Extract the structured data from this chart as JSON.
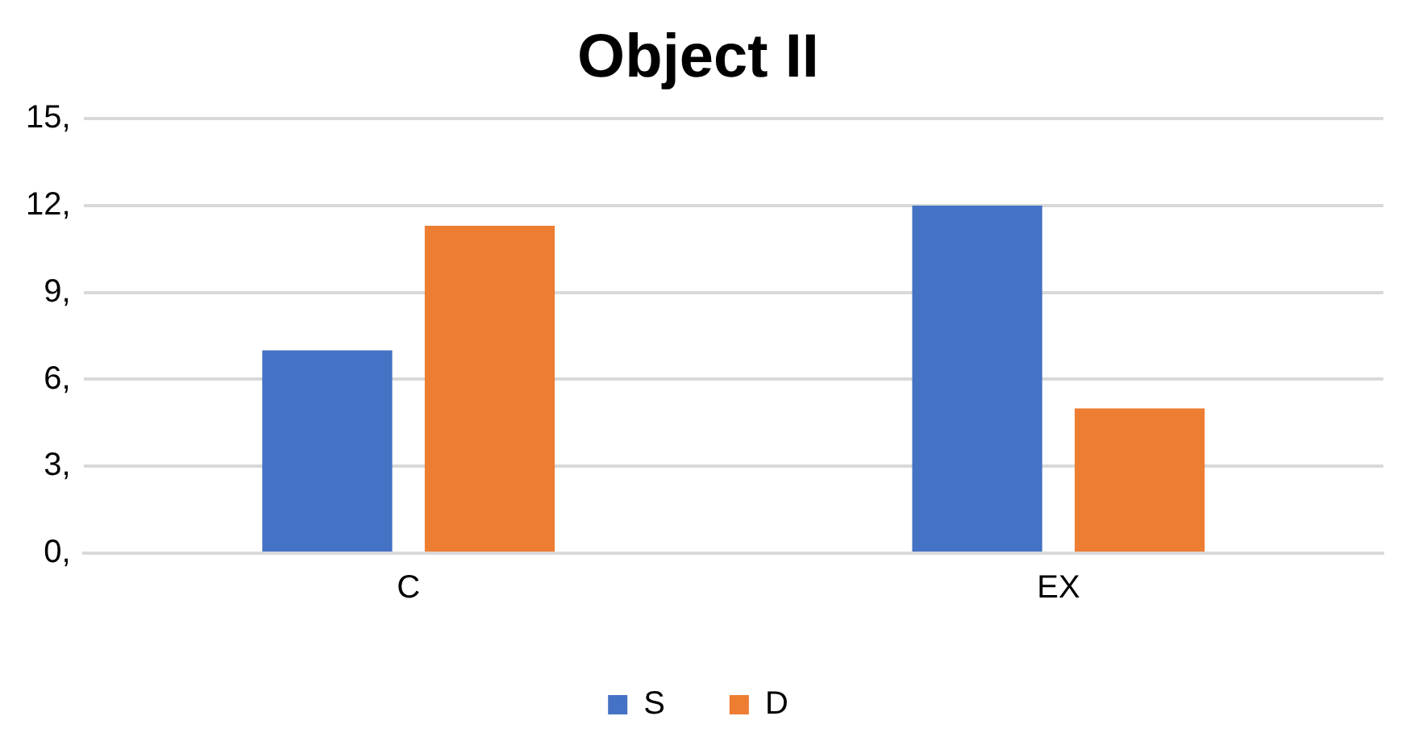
{
  "chart_data": {
    "type": "bar",
    "title": "Object II",
    "categories": [
      "C",
      "EX"
    ],
    "series": [
      {
        "name": "S",
        "color": "#4472c4",
        "values": [
          7,
          12
        ]
      },
      {
        "name": "D",
        "color": "#ed7d31",
        "values": [
          11.3,
          5
        ]
      }
    ],
    "ylim": [
      0,
      15
    ],
    "yticks": [
      {
        "value": 0,
        "label": "0,"
      },
      {
        "value": 3,
        "label": "3,"
      },
      {
        "value": 6,
        "label": "6,"
      },
      {
        "value": 9,
        "label": "9,"
      },
      {
        "value": 12,
        "label": "12,"
      },
      {
        "value": 15,
        "label": "15,"
      }
    ],
    "grid": "y",
    "legend": "bottom"
  }
}
